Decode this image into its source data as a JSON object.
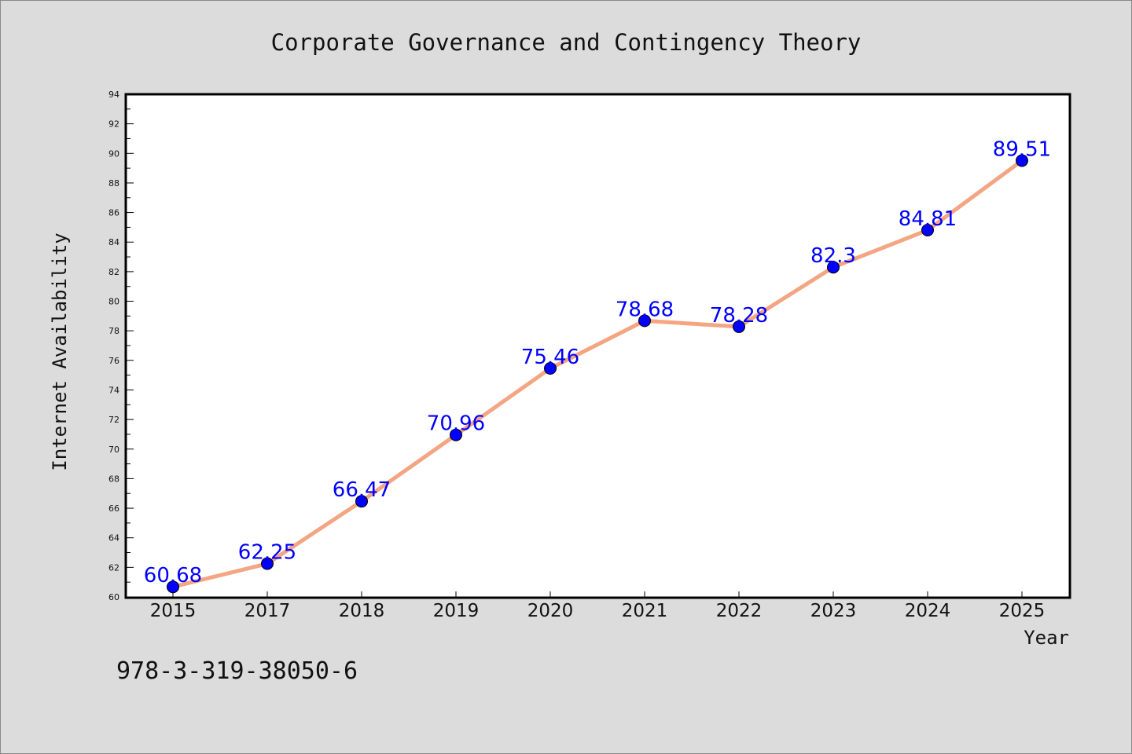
{
  "chart_data": {
    "type": "line",
    "title": "Corporate Governance and Contingency Theory",
    "xlabel": "Year",
    "ylabel": "Internet Availability",
    "categories": [
      "2015",
      "2017",
      "2018",
      "2019",
      "2020",
      "2021",
      "2022",
      "2023",
      "2024",
      "2025"
    ],
    "series": [
      {
        "values": [
          60.68,
          62.25,
          66.47,
          70.96,
          75.46,
          78.68,
          78.28,
          82.3,
          84.81,
          89.51
        ]
      }
    ],
    "data_labels": [
      "60.68",
      "62.25",
      "66.47",
      "70.96",
      "75.46",
      "78.68",
      "78.28",
      "82.3",
      "84.81",
      "89.51"
    ],
    "ylim": [
      60,
      94
    ],
    "yticks": [
      "60",
      "62",
      "64",
      "66",
      "68",
      "70",
      "72",
      "74",
      "76",
      "78",
      "80",
      "82",
      "84",
      "86",
      "88",
      "90",
      "92",
      "94"
    ],
    "grid": false,
    "legend": "none",
    "colors": {
      "line": "#f4a582",
      "marker": "#0000ff",
      "label": "#0000ff",
      "plot_background": "#ffffff",
      "page_background": "#dcdcdc"
    }
  },
  "footer": {
    "isbn": "978-3-319-38050-6"
  }
}
